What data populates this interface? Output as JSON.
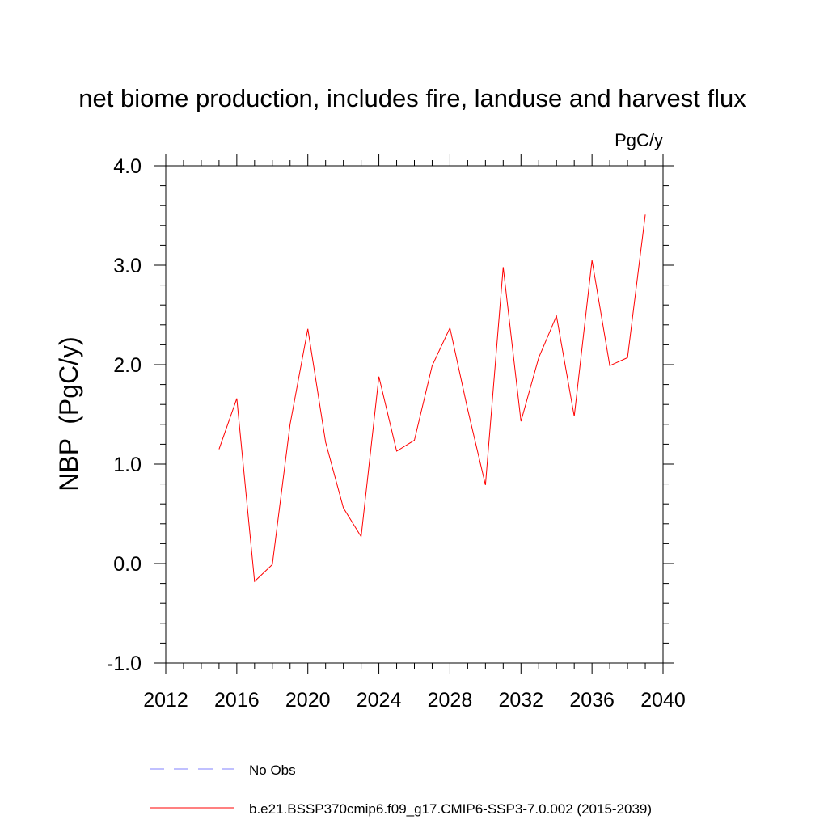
{
  "chart_data": {
    "type": "line",
    "title": "net biome production, includes fire, landuse and harvest flux",
    "units_label": "PgC/y",
    "ylabel": "NBP  (PgC/y)",
    "xlabel": "",
    "xlim": [
      2012,
      2040
    ],
    "ylim": [
      -1.0,
      4.0
    ],
    "x_ticks": [
      2012,
      2016,
      2020,
      2024,
      2028,
      2032,
      2036,
      2040
    ],
    "x_tick_labels": [
      "2012",
      "2016",
      "2020",
      "2024",
      "2028",
      "2032",
      "2036",
      "2040"
    ],
    "y_ticks": [
      -1.0,
      0.0,
      1.0,
      2.0,
      3.0,
      4.0
    ],
    "y_tick_labels": [
      "-1.0",
      "0.0",
      "1.0",
      "2.0",
      "3.0",
      "4.0"
    ],
    "x_minor_step": 1,
    "y_minor_step": 0.2,
    "grid": false,
    "legend_position": "bottom-center",
    "series": [
      {
        "name": "b.e21.BSSP370cmip6.f09_g17.CMIP6-SSP3-7.0.002 (2015-2039)",
        "color": "#ff0000",
        "dash": "solid",
        "x": [
          2015,
          2016,
          2017,
          2018,
          2019,
          2020,
          2021,
          2022,
          2023,
          2024,
          2025,
          2026,
          2027,
          2028,
          2029,
          2030,
          2031,
          2032,
          2033,
          2034,
          2035,
          2036,
          2037,
          2038,
          2039
        ],
        "values": [
          1.15,
          1.66,
          -0.18,
          -0.01,
          1.4,
          2.36,
          1.22,
          0.56,
          0.27,
          1.88,
          1.13,
          1.24,
          1.99,
          2.37,
          1.55,
          0.79,
          2.98,
          1.43,
          2.07,
          2.49,
          1.48,
          3.05,
          1.99,
          2.07,
          3.51
        ]
      }
    ],
    "legend": [
      {
        "label": "No Obs",
        "color": "#8080ff",
        "dash": "dashed"
      },
      {
        "label": "b.e21.BSSP370cmip6.f09_g17.CMIP6-SSP3-7.0.002 (2015-2039)",
        "color": "#ff0000",
        "dash": "solid"
      }
    ]
  }
}
